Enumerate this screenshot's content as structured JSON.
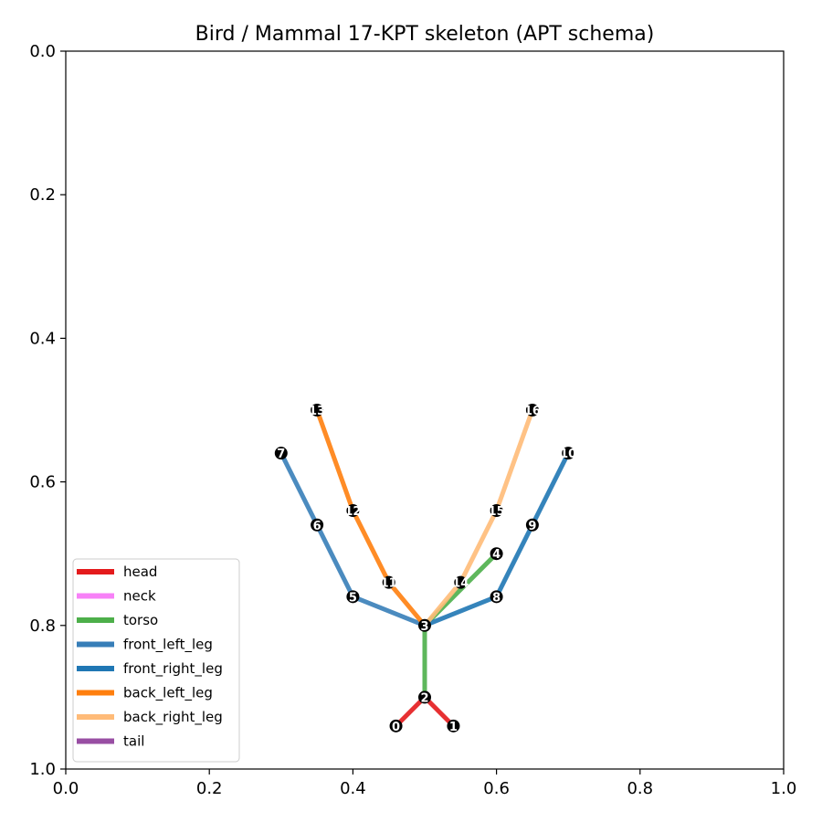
{
  "chart_data": {
    "type": "scatter",
    "title": "Bird / Mammal 17-KPT skeleton (APT schema)",
    "xlabel": "",
    "ylabel": "",
    "xlim": [
      0.0,
      1.0
    ],
    "ylim": [
      0.0,
      1.0
    ],
    "y_inverted": true,
    "grid": false,
    "legend_position": "lower-left",
    "x_ticks": [
      "0.0",
      "0.2",
      "0.4",
      "0.6",
      "0.8",
      "1.0"
    ],
    "y_ticks": [
      "0.0",
      "0.2",
      "0.4",
      "0.6",
      "0.8",
      "1.0"
    ],
    "keypoints": [
      {
        "id": "0",
        "x": 0.46,
        "y": 0.94
      },
      {
        "id": "1",
        "x": 0.54,
        "y": 0.94
      },
      {
        "id": "2",
        "x": 0.5,
        "y": 0.9
      },
      {
        "id": "3",
        "x": 0.5,
        "y": 0.8
      },
      {
        "id": "4",
        "x": 0.6,
        "y": 0.7
      },
      {
        "id": "5",
        "x": 0.4,
        "y": 0.76
      },
      {
        "id": "6",
        "x": 0.35,
        "y": 0.66
      },
      {
        "id": "7",
        "x": 0.3,
        "y": 0.56
      },
      {
        "id": "8",
        "x": 0.6,
        "y": 0.76
      },
      {
        "id": "9",
        "x": 0.65,
        "y": 0.66
      },
      {
        "id": "10",
        "x": 0.7,
        "y": 0.56
      },
      {
        "id": "11",
        "x": 0.45,
        "y": 0.74
      },
      {
        "id": "12",
        "x": 0.4,
        "y": 0.64
      },
      {
        "id": "13",
        "x": 0.35,
        "y": 0.5
      },
      {
        "id": "14",
        "x": 0.55,
        "y": 0.74
      },
      {
        "id": "15",
        "x": 0.6,
        "y": 0.64
      },
      {
        "id": "16",
        "x": 0.65,
        "y": 0.5
      }
    ],
    "series": [
      {
        "name": "head",
        "color": "#e41a1c",
        "links": [
          [
            2,
            0
          ],
          [
            2,
            1
          ]
        ]
      },
      {
        "name": "neck",
        "color": "#f781f7",
        "links": []
      },
      {
        "name": "torso",
        "color": "#4daf4a",
        "links": [
          [
            2,
            3
          ],
          [
            3,
            4
          ]
        ]
      },
      {
        "name": "front_left_leg",
        "color": "#377eb8",
        "links": [
          [
            3,
            5
          ],
          [
            5,
            6
          ],
          [
            6,
            7
          ]
        ]
      },
      {
        "name": "front_right_leg",
        "color": "#1f77b4",
        "links": [
          [
            3,
            8
          ],
          [
            8,
            9
          ],
          [
            9,
            10
          ]
        ]
      },
      {
        "name": "back_left_leg",
        "color": "#ff7f0e",
        "links": [
          [
            3,
            11
          ],
          [
            11,
            12
          ],
          [
            12,
            13
          ]
        ]
      },
      {
        "name": "back_right_leg",
        "color": "#ffbb78",
        "links": [
          [
            3,
            14
          ],
          [
            14,
            15
          ],
          [
            15,
            16
          ]
        ]
      },
      {
        "name": "tail",
        "color": "#984ea3",
        "links": []
      }
    ]
  }
}
